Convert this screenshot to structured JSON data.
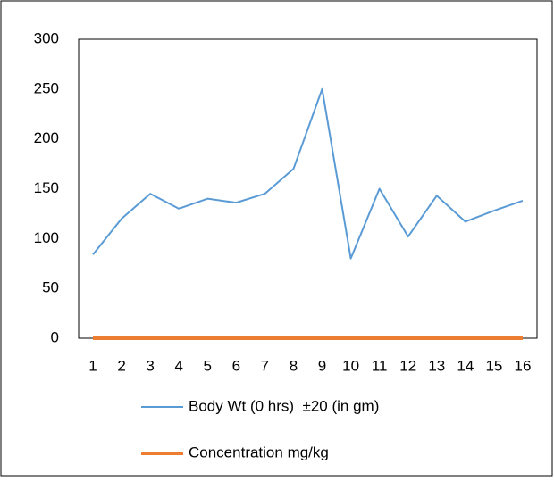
{
  "chart_data": {
    "type": "line",
    "categories": [
      "1",
      "2",
      "3",
      "4",
      "5",
      "6",
      "7",
      "8",
      "9",
      "10",
      "11",
      "12",
      "13",
      "14",
      "15",
      "16"
    ],
    "series": [
      {
        "name": "Body Wt (0 hrs)  ±20 (in gm)",
        "color": "#5b9bd5",
        "values": [
          84,
          120,
          145,
          130,
          140,
          136,
          145,
          170,
          250,
          80,
          150,
          102,
          143,
          117,
          128,
          138
        ]
      },
      {
        "name": "Concentration mg/kg",
        "color": "#ed7d31",
        "values": [
          0,
          0,
          0,
          0,
          0,
          0,
          0,
          0,
          0,
          0,
          0,
          0,
          0,
          0,
          0,
          0
        ]
      }
    ],
    "ylim": [
      0,
      300
    ],
    "yticks": [
      0,
      50,
      100,
      150,
      200,
      250,
      300
    ],
    "grid": false
  }
}
